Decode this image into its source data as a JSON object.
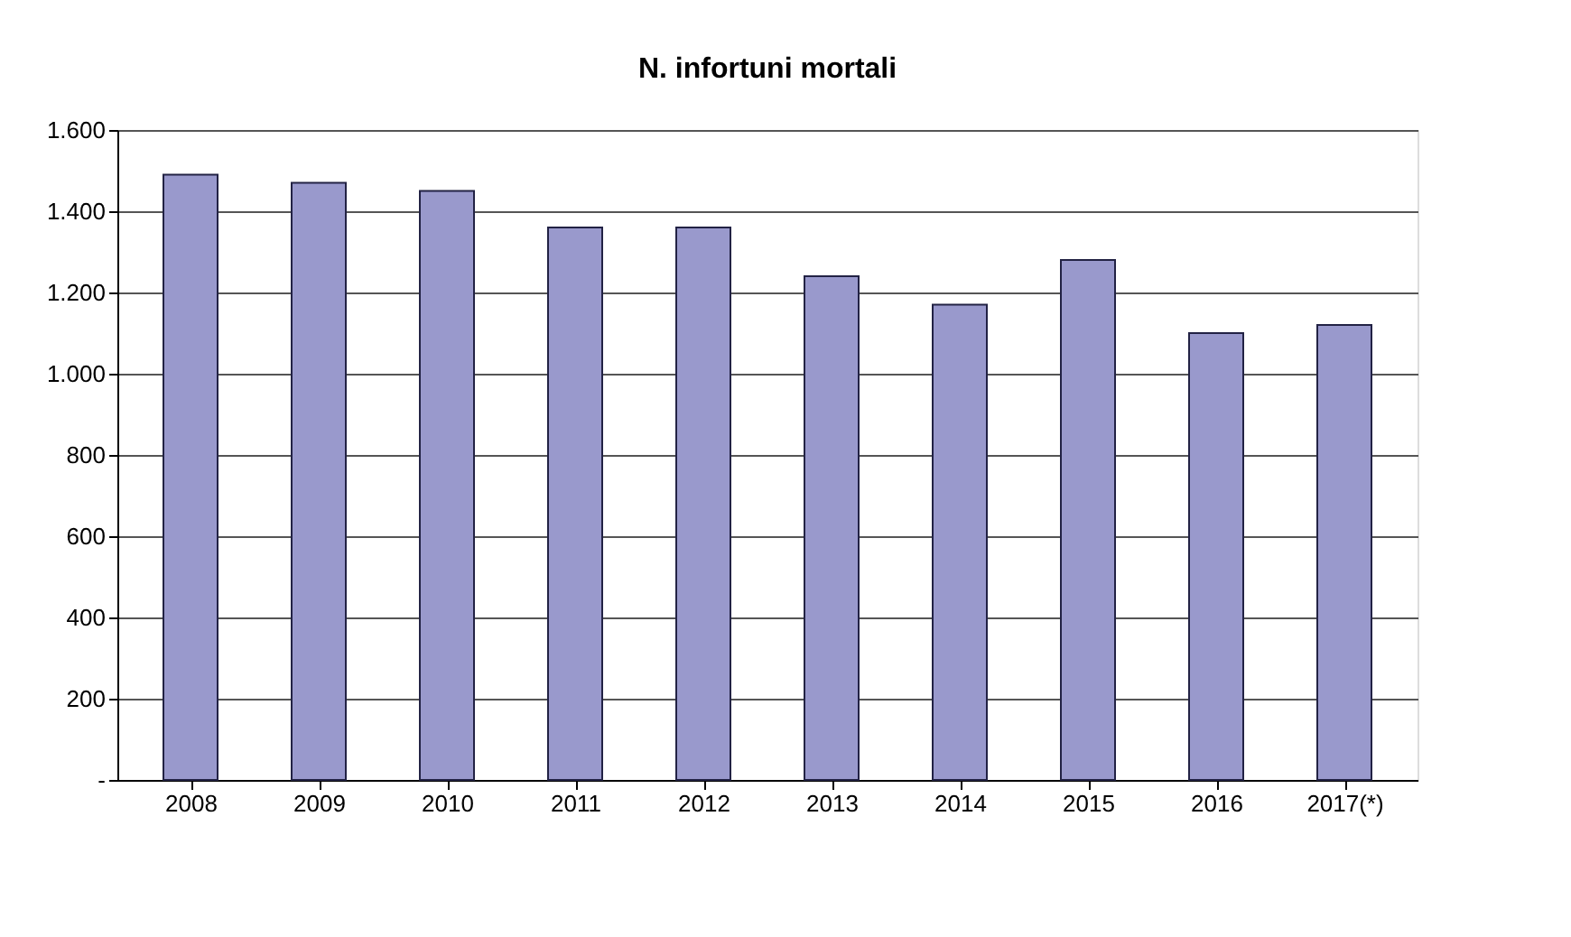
{
  "chart_data": {
    "type": "bar",
    "title": "N. infortuni mortali",
    "categories": [
      "2008",
      "2009",
      "2010",
      "2011",
      "2012",
      "2013",
      "2014",
      "2015",
      "2016",
      "2017(*)"
    ],
    "series": [
      {
        "color": "#9999cc",
        "values": [
          1490,
          1470,
          1450,
          1360,
          1360,
          1240,
          1170,
          1280,
          1100,
          1120
        ]
      }
    ],
    "ylim": [
      0,
      1600
    ],
    "yticks": [
      {
        "value": 0,
        "label": "-"
      },
      {
        "value": 200,
        "label": "200"
      },
      {
        "value": 400,
        "label": "400"
      },
      {
        "value": 600,
        "label": "600"
      },
      {
        "value": 800,
        "label": "800"
      },
      {
        "value": 1000,
        "label": "1.000"
      },
      {
        "value": 1200,
        "label": "1.200"
      },
      {
        "value": 1400,
        "label": "1.400"
      },
      {
        "value": 1600,
        "label": "1.600"
      }
    ],
    "grid": "y",
    "legend": false
  }
}
